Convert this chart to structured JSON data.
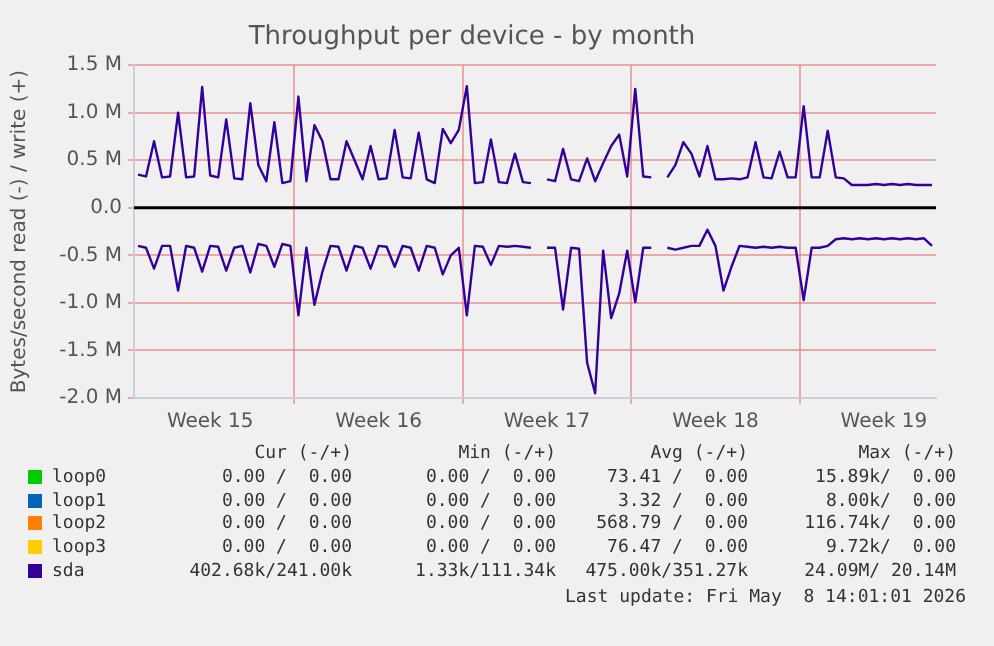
{
  "chart_data": {
    "type": "line",
    "title": "Throughput per device - by month",
    "ylabel": "Bytes/second read (-) / write (+)",
    "categories": [
      null,
      null,
      null,
      null,
      null,
      null,
      null,
      null,
      null,
      "Week 15",
      null,
      null,
      null,
      null,
      null,
      null,
      null,
      null,
      null,
      null,
      null,
      null,
      null,
      null,
      null,
      null,
      null,
      null,
      null,
      null,
      "Week 16",
      null,
      null,
      null,
      null,
      null,
      null,
      null,
      null,
      null,
      null,
      null,
      null,
      null,
      null,
      null,
      null,
      null,
      null,
      null,
      null,
      "Week 17",
      null,
      null,
      null,
      null,
      null,
      null,
      null,
      null,
      null,
      null,
      null,
      null,
      null,
      null,
      null,
      null,
      null,
      null,
      null,
      null,
      "Week 18",
      null,
      null,
      null,
      null,
      null,
      null,
      null,
      null,
      null,
      null,
      null,
      null,
      null,
      null,
      null,
      null,
      null,
      null,
      null,
      null,
      "Week 19",
      null,
      null,
      null,
      null,
      null,
      null
    ],
    "ylim": [
      -2000000,
      1500000
    ],
    "yticks": [
      {
        "value": -2000000,
        "label": "-2.0 M"
      },
      {
        "value": -1500000,
        "label": "-1.5 M"
      },
      {
        "value": -1000000,
        "label": "-1.0 M"
      },
      {
        "value": -500000,
        "label": "-0.5 M"
      },
      {
        "value": 0,
        "label": "0.0"
      },
      {
        "value": 500000,
        "label": "0.5 M"
      },
      {
        "value": 1000000,
        "label": "1.0 M"
      },
      {
        "value": 1500000,
        "label": "1.5 M"
      }
    ],
    "ref_lines": [
      {
        "axis": "y",
        "value": 0,
        "color": "#000000"
      }
    ],
    "grid": true,
    "legend": "bottom",
    "marker": "none",
    "line_style": "solid",
    "series": [
      {
        "name": "loop0",
        "color": "#00cc00",
        "values": [
          null,
          null,
          null,
          null,
          null,
          null,
          null,
          null,
          null,
          null,
          null,
          null,
          null,
          null,
          null,
          null,
          null,
          null,
          null,
          null,
          null,
          null,
          null,
          null,
          null,
          null,
          null,
          null,
          null,
          null,
          null,
          null,
          null,
          null,
          null,
          null,
          null,
          null,
          null,
          null,
          null,
          null,
          null,
          null,
          null,
          null,
          null,
          null,
          null,
          null,
          null,
          null,
          null,
          null,
          null,
          null,
          null,
          null,
          null,
          null,
          null,
          null,
          null,
          null,
          null,
          null,
          null,
          null,
          null,
          null,
          null,
          null,
          null,
          null,
          null,
          null,
          null,
          null,
          null,
          null,
          null,
          null,
          null,
          null,
          null,
          null,
          null,
          null,
          null,
          null,
          null,
          null,
          null,
          null,
          null,
          null,
          null,
          null,
          null,
          null
        ]
      },
      {
        "name": "loop1",
        "color": "#0066b3",
        "values": [
          null,
          null,
          null,
          null,
          null,
          null,
          null,
          null,
          null,
          null,
          null,
          null,
          null,
          null,
          null,
          null,
          null,
          null,
          null,
          null,
          null,
          null,
          null,
          null,
          null,
          null,
          null,
          null,
          null,
          null,
          null,
          null,
          null,
          null,
          null,
          null,
          null,
          null,
          null,
          null,
          null,
          null,
          null,
          null,
          null,
          null,
          null,
          null,
          null,
          null,
          null,
          null,
          null,
          null,
          null,
          null,
          null,
          null,
          null,
          null,
          null,
          null,
          null,
          null,
          null,
          null,
          null,
          null,
          null,
          null,
          null,
          null,
          null,
          null,
          null,
          null,
          null,
          null,
          null,
          null,
          null,
          null,
          null,
          null,
          null,
          null,
          null,
          null,
          null,
          null,
          null,
          null,
          null,
          null,
          null,
          null,
          null,
          null,
          null,
          null
        ]
      },
      {
        "name": "loop2",
        "color": "#ff8000",
        "values": [
          null,
          null,
          null,
          null,
          null,
          null,
          null,
          null,
          null,
          null,
          null,
          null,
          null,
          null,
          null,
          null,
          null,
          null,
          null,
          null,
          null,
          null,
          null,
          null,
          null,
          null,
          null,
          null,
          null,
          null,
          null,
          null,
          null,
          null,
          null,
          null,
          null,
          null,
          null,
          null,
          null,
          null,
          null,
          null,
          null,
          null,
          null,
          null,
          null,
          null,
          null,
          null,
          null,
          null,
          null,
          null,
          null,
          null,
          null,
          null,
          null,
          null,
          null,
          null,
          null,
          null,
          null,
          null,
          null,
          null,
          null,
          null,
          null,
          null,
          null,
          null,
          null,
          null,
          null,
          null,
          null,
          null,
          null,
          null,
          null,
          null,
          null,
          null,
          null,
          null,
          null,
          null,
          null,
          null,
          null,
          null,
          null,
          null,
          null,
          null
        ]
      },
      {
        "name": "loop3",
        "color": "#ffcc00",
        "values": [
          null,
          null,
          null,
          null,
          null,
          null,
          null,
          null,
          null,
          null,
          null,
          null,
          null,
          null,
          null,
          null,
          null,
          null,
          null,
          null,
          null,
          null,
          null,
          null,
          null,
          null,
          null,
          null,
          null,
          null,
          null,
          null,
          null,
          null,
          null,
          null,
          null,
          null,
          null,
          null,
          null,
          null,
          null,
          null,
          null,
          null,
          null,
          null,
          null,
          null,
          null,
          null,
          null,
          null,
          null,
          null,
          null,
          null,
          null,
          null,
          null,
          null,
          null,
          null,
          null,
          null,
          null,
          null,
          null,
          null,
          null,
          null,
          null,
          null,
          null,
          null,
          null,
          null,
          null,
          null,
          null,
          null,
          null,
          null,
          null,
          null,
          null,
          null,
          null,
          null,
          null,
          null,
          null,
          null,
          null,
          null,
          null,
          null,
          null,
          null
        ]
      },
      {
        "name": "sda",
        "color": "#330099",
        "values": [
          350000,
          330000,
          700000,
          320000,
          330000,
          1000000,
          320000,
          330000,
          1270000,
          340000,
          320000,
          930000,
          310000,
          300000,
          1100000,
          450000,
          280000,
          900000,
          260000,
          280000,
          1170000,
          280000,
          870000,
          700000,
          300000,
          300000,
          700000,
          500000,
          300000,
          650000,
          300000,
          310000,
          820000,
          320000,
          310000,
          790000,
          300000,
          260000,
          830000,
          680000,
          820000,
          1280000,
          260000,
          270000,
          720000,
          270000,
          260000,
          570000,
          270000,
          260000,
          null,
          300000,
          280000,
          620000,
          300000,
          280000,
          520000,
          280000,
          470000,
          650000,
          770000,
          330000,
          1250000,
          330000,
          320000,
          null,
          320000,
          450000,
          690000,
          570000,
          330000,
          650000,
          300000,
          300000,
          310000,
          300000,
          320000,
          690000,
          320000,
          310000,
          590000,
          320000,
          320000,
          1070000,
          320000,
          320000,
          810000,
          320000,
          310000,
          240000,
          240000,
          240000,
          250000,
          240000,
          250000,
          240000,
          250000,
          240000,
          240000,
          240000
        ]
      },
      {
        "color": "#330099",
        "values": [
          -400000,
          -420000,
          -640000,
          -400000,
          -400000,
          -870000,
          -400000,
          -420000,
          -670000,
          -400000,
          -410000,
          -660000,
          -420000,
          -400000,
          -680000,
          -380000,
          -400000,
          -620000,
          -380000,
          -400000,
          -1130000,
          -420000,
          -1020000,
          -670000,
          -400000,
          -410000,
          -660000,
          -400000,
          -420000,
          -640000,
          -400000,
          -410000,
          -620000,
          -400000,
          -420000,
          -660000,
          -400000,
          -420000,
          -700000,
          -500000,
          -420000,
          -1130000,
          -400000,
          -410000,
          -600000,
          -400000,
          -410000,
          -400000,
          -410000,
          -420000,
          null,
          -420000,
          -420000,
          -1070000,
          -420000,
          -430000,
          -1630000,
          -1950000,
          -450000,
          -1160000,
          -900000,
          -450000,
          -990000,
          -420000,
          -420000,
          null,
          -420000,
          -440000,
          -420000,
          -400000,
          -400000,
          -230000,
          -400000,
          -870000,
          -620000,
          -400000,
          -410000,
          -420000,
          -410000,
          -420000,
          -410000,
          -420000,
          -420000,
          -970000,
          -420000,
          -420000,
          -400000,
          -330000,
          -320000,
          -330000,
          -320000,
          -330000,
          -320000,
          -330000,
          -320000,
          -330000,
          -320000,
          -330000,
          -320000,
          -400000
        ]
      }
    ],
    "annotations": [
      "Cur (-/+)",
      "Min (-/+)",
      "Avg (-/+)",
      "Max (-/+)",
      "0.00 /  0.00",
      "0.00 /  0.00",
      "73.41 /  0.00",
      "15.89k/  0.00",
      "0.00 /  0.00",
      "0.00 /  0.00",
      "3.32 /  0.00",
      "8.00k/  0.00",
      "0.00 /  0.00",
      "0.00 /  0.00",
      "568.79 /  0.00",
      "116.74k/  0.00",
      "0.00 /  0.00",
      "0.00 /  0.00",
      "76.47 /  0.00",
      "9.72k/  0.00",
      "402.68k/241.00k",
      "1.33k/111.34k",
      "475.00k/351.27k",
      "24.09M/ 20.14M",
      "Last update: Fri May  8 14:01:01 2026"
    ]
  }
}
